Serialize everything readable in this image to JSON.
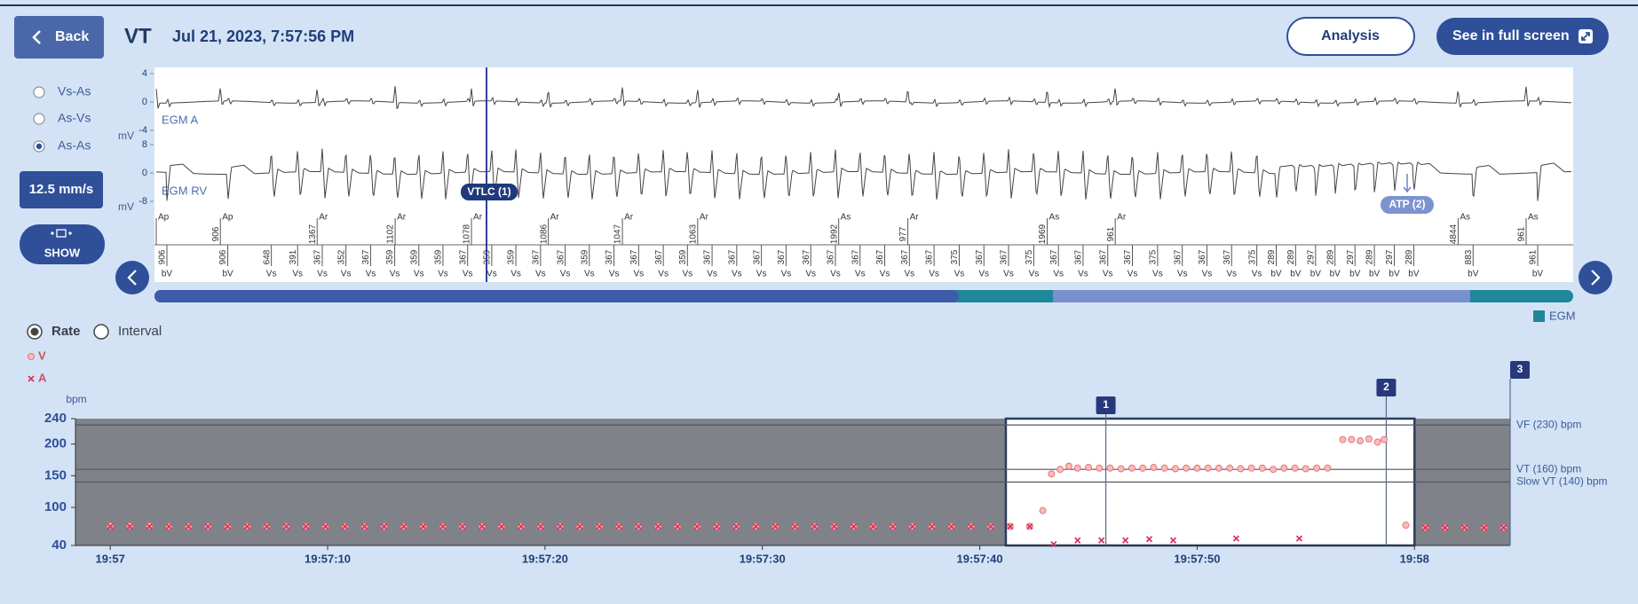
{
  "header": {
    "back": "Back",
    "episode": "VT",
    "datetime": "Jul 21, 2023, 7:57:56 PM",
    "analysis": "Analysis",
    "fullscreen": "See in full screen"
  },
  "sidebar": {
    "intervals": [
      {
        "label": "Vs-As",
        "selected": false
      },
      {
        "label": "As-Vs",
        "selected": false
      },
      {
        "label": "As-As",
        "selected": true
      }
    ],
    "speed": "12.5 mm/s",
    "show": "SHOW"
  },
  "egm": {
    "channels": [
      {
        "name": "EGM A",
        "unit": "mV",
        "ylim": [
          -4,
          4
        ],
        "yticks": [
          4,
          0,
          -4
        ]
      },
      {
        "name": "EGM RV",
        "unit": "mV",
        "ylim": [
          -8,
          8
        ],
        "yticks": [
          8,
          0,
          -8
        ]
      }
    ],
    "annotations": [
      "VTLC (1)",
      "ATP (2)"
    ],
    "atrial_markers": {
      "labels": [
        "Ap",
        "Ap",
        "Ar",
        "Ar",
        "Ar",
        "Ar",
        "Ar",
        "Ar",
        "As",
        "Ar",
        "As",
        "Ar",
        "As",
        "As"
      ],
      "intervals": [
        null,
        906,
        1367,
        1102,
        1078,
        1086,
        1047,
        1063,
        1992,
        977,
        1969,
        961,
        4844,
        961
      ]
    },
    "ventricular_markers": {
      "labels": [
        "bV",
        "bV",
        "Vs",
        "Vs",
        "Vs",
        "Vs",
        "Vs",
        "Vs",
        "Vs",
        "Vs",
        "Vs",
        "Vs",
        "Vs",
        "Vs",
        "Vs",
        "Vs",
        "Vs",
        "Vs",
        "Vs",
        "Vs",
        "Vs",
        "Vs",
        "Vs",
        "Vs",
        "Vs",
        "Vs",
        "Vs",
        "Vs",
        "Vs",
        "Vs",
        "Vs",
        "Vs",
        "Vs",
        "Vs",
        "Vs",
        "Vs",
        "Vs",
        "Vs",
        "Vs",
        "Vs",
        "Vs",
        "Vs",
        "Vs",
        "bV",
        "bV",
        "bV",
        "bV",
        "bV",
        "bV",
        "bV",
        "bV",
        "bV",
        "bV"
      ],
      "intervals": [
        906,
        906,
        648,
        391,
        367,
        352,
        367,
        359,
        359,
        359,
        367,
        359,
        359,
        367,
        367,
        359,
        367,
        367,
        367,
        359,
        367,
        367,
        367,
        367,
        367,
        367,
        367,
        367,
        367,
        367,
        375,
        367,
        367,
        375,
        367,
        367,
        367,
        367,
        375,
        367,
        367,
        367,
        375,
        289,
        289,
        297,
        289,
        297,
        289,
        297,
        289,
        883,
        961
      ]
    },
    "legend": "EGM"
  },
  "rate_view": {
    "options": [
      {
        "label": "Rate",
        "selected": true
      },
      {
        "label": "Interval",
        "selected": false
      }
    ]
  },
  "chart_data": {
    "type": "scatter",
    "y_label": "bpm",
    "xlim": [
      -1.6,
      64.4
    ],
    "xticks": [
      {
        "value": 0,
        "label": "19:57"
      },
      {
        "value": 10,
        "label": "19:57:10"
      },
      {
        "value": 20,
        "label": "19:57:20"
      },
      {
        "value": 30,
        "label": "19:57:30"
      },
      {
        "value": 40,
        "label": "19:57:40"
      },
      {
        "value": 50,
        "label": "19:57:50"
      },
      {
        "value": 60,
        "label": "19:58"
      }
    ],
    "ylim": [
      40,
      240
    ],
    "yticks": [
      40,
      100,
      150,
      200,
      240
    ],
    "zones": [
      {
        "label": "VF (230) bpm",
        "value": 230
      },
      {
        "label": "VT (160) bpm",
        "value": 160
      },
      {
        "label": "Slow VT (140) bpm",
        "value": 140
      }
    ],
    "window": [
      41.2,
      60
    ],
    "episode_markers": [
      {
        "label": "1",
        "x": 45.8
      },
      {
        "label": "2",
        "x": 58.7
      },
      {
        "label": "3",
        "x": 64.4
      }
    ],
    "series": [
      {
        "name": "V",
        "color": "#e8737c",
        "x": [
          0,
          0.9,
          1.8,
          2.7,
          3.6,
          4.5,
          5.4,
          6.3,
          7.2,
          8.1,
          9,
          9.9,
          10.8,
          11.7,
          12.6,
          13.5,
          14.4,
          15.3,
          16.2,
          17.1,
          18,
          18.9,
          19.8,
          20.7,
          21.6,
          22.5,
          23.4,
          24.3,
          25.2,
          26.1,
          27,
          27.9,
          28.8,
          29.7,
          30.6,
          31.5,
          32.4,
          33.3,
          34.2,
          35.1,
          36,
          36.9,
          37.8,
          38.7,
          39.6,
          40.5,
          41.4,
          42.3,
          42.9,
          43.3,
          43.7,
          44.1,
          44.5,
          45,
          45.5,
          46,
          46.5,
          47,
          47.5,
          48,
          48.5,
          49,
          49.5,
          50,
          50.5,
          51,
          51.5,
          52,
          52.5,
          53,
          53.5,
          54,
          54.5,
          55,
          55.5,
          56,
          56.7,
          57.1,
          57.5,
          57.9,
          58.3,
          58.6,
          59.6,
          60.5,
          61.4,
          62.3,
          63.2,
          64.1
        ],
        "values": [
          71,
          71,
          71,
          70,
          70,
          70,
          70,
          70,
          70,
          70,
          70,
          70,
          70,
          70,
          70,
          70,
          70,
          70,
          70,
          70,
          70,
          70,
          70,
          70,
          70,
          70,
          70,
          70,
          70,
          70,
          70,
          70,
          70,
          70,
          70,
          70,
          70,
          70,
          70,
          70,
          70,
          70,
          70,
          70,
          70,
          70,
          70,
          70,
          95,
          153,
          160,
          165,
          162,
          163,
          162,
          162,
          161,
          162,
          162,
          163,
          162,
          161,
          162,
          162,
          162,
          162,
          162,
          161,
          162,
          162,
          160,
          162,
          162,
          161,
          162,
          162,
          207,
          207,
          205,
          208,
          203,
          207,
          72,
          68,
          68,
          68,
          68,
          68
        ]
      },
      {
        "name": "A",
        "color": "#d6335a",
        "x": [
          0,
          0.9,
          1.8,
          2.7,
          3.6,
          4.5,
          5.4,
          6.3,
          7.2,
          8.1,
          9,
          9.9,
          10.8,
          11.7,
          12.6,
          13.5,
          14.4,
          15.3,
          16.2,
          17.1,
          18,
          18.9,
          19.8,
          20.7,
          21.6,
          22.5,
          23.4,
          24.3,
          25.2,
          26.1,
          27,
          27.9,
          28.8,
          29.7,
          30.6,
          31.5,
          32.4,
          33.3,
          34.2,
          35.1,
          36,
          36.9,
          37.8,
          38.7,
          39.6,
          40.5,
          41.4,
          42.3,
          43.4,
          44.5,
          45.6,
          46.7,
          47.8,
          48.9,
          51.8,
          54.7,
          60.5,
          61.4,
          62.3,
          63.2,
          64.1
        ],
        "values": [
          70,
          70,
          70,
          70,
          70,
          70,
          70,
          70,
          70,
          70,
          70,
          70,
          70,
          70,
          70,
          70,
          70,
          70,
          70,
          70,
          70,
          70,
          70,
          70,
          70,
          70,
          70,
          70,
          70,
          70,
          70,
          70,
          70,
          70,
          70,
          70,
          70,
          70,
          70,
          70,
          70,
          70,
          70,
          70,
          70,
          70,
          70,
          70,
          42,
          48,
          48,
          48,
          50,
          48,
          51,
          51,
          68,
          68,
          68,
          68,
          68
        ]
      }
    ]
  }
}
